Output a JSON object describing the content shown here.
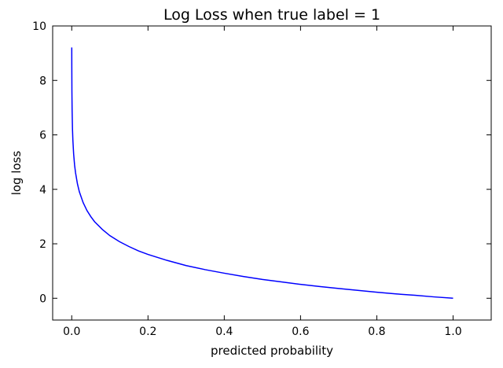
{
  "chart_data": {
    "type": "line",
    "title": "Log Loss when true label = 1",
    "xlabel": "predicted probability",
    "ylabel": "log loss",
    "xlim": [
      -0.05,
      1.1
    ],
    "ylim": [
      -0.8,
      10
    ],
    "xticks": [
      "0.0",
      "0.2",
      "0.4",
      "0.6",
      "0.8",
      "1.0"
    ],
    "yticks": [
      "0",
      "2",
      "4",
      "6",
      "8",
      "10"
    ],
    "grid": false,
    "series": [
      {
        "color": "#0000ff",
        "x": [
          0.0001,
          0.0002,
          0.0005,
          0.001,
          0.002,
          0.003,
          0.005,
          0.0075,
          0.01,
          0.015,
          0.02,
          0.03,
          0.04,
          0.05,
          0.06,
          0.08,
          0.1,
          0.125,
          0.15,
          0.175,
          0.2,
          0.25,
          0.3,
          0.35,
          0.4,
          0.45,
          0.5,
          0.55,
          0.6,
          0.65,
          0.7,
          0.75,
          0.8,
          0.85,
          0.9,
          0.95,
          1.0
        ],
        "y": [
          9.21,
          8.52,
          7.6,
          6.91,
          6.21,
          5.81,
          5.3,
          4.89,
          4.61,
          4.2,
          3.91,
          3.51,
          3.22,
          3.0,
          2.81,
          2.53,
          2.3,
          2.08,
          1.9,
          1.74,
          1.61,
          1.39,
          1.2,
          1.05,
          0.92,
          0.8,
          0.69,
          0.6,
          0.51,
          0.43,
          0.36,
          0.29,
          0.22,
          0.16,
          0.11,
          0.05,
          0.0
        ]
      }
    ]
  }
}
